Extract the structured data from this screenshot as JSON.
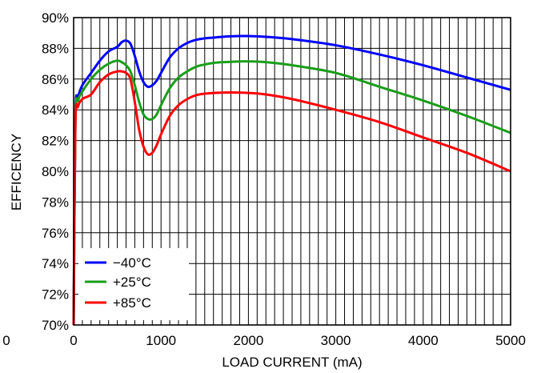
{
  "chart_data": {
    "type": "line",
    "title": "",
    "xlabel": "LOAD CURRENT (mA)",
    "ylabel": "EFFICENCY",
    "xlim": [
      0,
      5000
    ],
    "ylim": [
      70,
      90
    ],
    "x_ticks": [
      0,
      1000,
      2000,
      3000,
      4000,
      5000
    ],
    "x_tick_labels": [
      "0",
      "1000",
      "2000",
      "3000",
      "4000",
      "5000"
    ],
    "y_ticks": [
      70,
      72,
      74,
      76,
      78,
      80,
      82,
      84,
      86,
      88,
      90
    ],
    "y_tick_labels": [
      "70%",
      "72%",
      "74%",
      "76%",
      "78%",
      "80%",
      "82%",
      "84%",
      "86%",
      "88%",
      "90%"
    ],
    "outer_x_label": "0",
    "grid": true,
    "legend": "bottom-left",
    "series": [
      {
        "name": "−40°C",
        "color": "#0000ff",
        "x": [
          0,
          20,
          50,
          100,
          200,
          300,
          400,
          500,
          550,
          600,
          650,
          700,
          750,
          800,
          850,
          900,
          950,
          1000,
          1100,
          1200,
          1300,
          1400,
          1500,
          1600,
          1700,
          1800,
          1900,
          2000,
          2200,
          2500,
          3000,
          3500,
          4000,
          4500,
          5000
        ],
        "values": [
          70,
          83.5,
          84.8,
          85.6,
          86.4,
          87.2,
          87.8,
          88.1,
          88.4,
          88.5,
          88.3,
          87.5,
          86.5,
          85.8,
          85.5,
          85.6,
          85.9,
          86.4,
          87.4,
          88.0,
          88.35,
          88.55,
          88.65,
          88.7,
          88.75,
          88.78,
          88.8,
          88.8,
          88.75,
          88.6,
          88.2,
          87.6,
          86.9,
          86.1,
          85.3
        ]
      },
      {
        "name": "+25°C",
        "color": "#1a9e1a",
        "x": [
          0,
          20,
          50,
          100,
          200,
          300,
          400,
          500,
          550,
          600,
          650,
          700,
          750,
          800,
          850,
          900,
          950,
          1000,
          1100,
          1200,
          1300,
          1400,
          1500,
          1600,
          1700,
          1800,
          1900,
          2000,
          2200,
          2500,
          3000,
          3500,
          4000,
          4500,
          5000
        ],
        "values": [
          70,
          83.3,
          84.6,
          85.2,
          86.0,
          86.6,
          87.0,
          87.2,
          87.1,
          86.9,
          86.5,
          85.6,
          84.5,
          83.7,
          83.4,
          83.4,
          83.7,
          84.3,
          85.4,
          86.1,
          86.5,
          86.8,
          86.95,
          87.05,
          87.1,
          87.12,
          87.15,
          87.15,
          87.1,
          86.9,
          86.4,
          85.5,
          84.6,
          83.6,
          82.5
        ]
      },
      {
        "name": "+85°C",
        "color": "#ff0000",
        "x": [
          0,
          20,
          50,
          100,
          200,
          300,
          400,
          500,
          550,
          600,
          650,
          700,
          750,
          800,
          850,
          900,
          950,
          1000,
          1100,
          1200,
          1300,
          1400,
          1500,
          1600,
          1700,
          1800,
          1900,
          2000,
          2200,
          2500,
          3000,
          3500,
          4000,
          4500,
          5000
        ],
        "values": [
          70,
          83.0,
          84.2,
          84.7,
          85.0,
          85.8,
          86.3,
          86.5,
          86.5,
          86.4,
          86.0,
          84.5,
          82.7,
          81.6,
          81.1,
          81.2,
          81.7,
          82.4,
          83.6,
          84.3,
          84.7,
          84.95,
          85.05,
          85.1,
          85.12,
          85.13,
          85.12,
          85.1,
          85.0,
          84.7,
          84.0,
          83.2,
          82.2,
          81.2,
          80.0
        ]
      }
    ]
  }
}
